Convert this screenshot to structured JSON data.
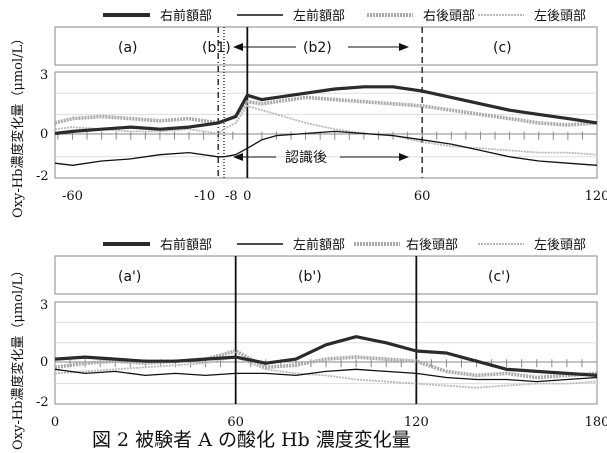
{
  "caption": "図 2 被験者 A の酸化 Hb 濃度変化量",
  "legend_labels": [
    "右前額部",
    "左前額部",
    "右後頭部",
    "左後頭部"
  ],
  "colors": {
    "right_frontal": "#2b2b2b",
    "left_frontal": "#111111",
    "right_occipital": "#a9a9a9",
    "left_occipital": "#b9b9b9"
  },
  "chart_data": [
    {
      "type": "line",
      "ylabel": "Oxy-Hb濃度変化量（μmol/L）",
      "ylim": [
        -2,
        3
      ],
      "yticks": [
        "3",
        "0",
        "-2"
      ],
      "xlim": [
        -66,
        120
      ],
      "xtick_values": [
        -60,
        -10,
        -8,
        0,
        60,
        120
      ],
      "xtick_labels": [
        "-60",
        "-10",
        "-8",
        "0",
        "60",
        "120"
      ],
      "phases": [
        "(a)",
        "(b1)",
        "(b2)",
        "(c)"
      ],
      "annotation": "認識後",
      "markers": [
        {
          "x": -10,
          "style": "dashdot"
        },
        {
          "x": -8,
          "style": "dot"
        },
        {
          "x": 0,
          "style": "solid"
        },
        {
          "x": 60,
          "style": "dashed"
        }
      ],
      "series": [
        {
          "name": "右前額部",
          "key": "right_frontal",
          "x": [
            -66,
            -60,
            -50,
            -40,
            -30,
            -20,
            -10,
            -8,
            -4,
            0,
            5,
            10,
            20,
            30,
            40,
            50,
            60,
            70,
            80,
            90,
            100,
            110,
            120
          ],
          "y": [
            0.1,
            0.2,
            0.3,
            0.4,
            0.3,
            0.4,
            0.6,
            0.7,
            0.9,
            1.9,
            1.7,
            1.8,
            2.0,
            2.2,
            2.3,
            2.3,
            2.1,
            1.8,
            1.5,
            1.2,
            1.0,
            0.8,
            0.6
          ]
        },
        {
          "name": "左前額部",
          "key": "left_frontal",
          "x": [
            -66,
            -60,
            -50,
            -40,
            -30,
            -20,
            -10,
            -8,
            -4,
            0,
            5,
            10,
            20,
            30,
            40,
            50,
            60,
            70,
            80,
            90,
            100,
            110,
            120
          ],
          "y": [
            -1.3,
            -1.4,
            -1.2,
            -1.1,
            -0.9,
            -0.8,
            -1.0,
            -1.0,
            -0.9,
            -0.6,
            -0.2,
            0.0,
            0.1,
            0.2,
            0.1,
            0.0,
            -0.2,
            -0.4,
            -0.7,
            -1.0,
            -1.2,
            -1.3,
            -1.4
          ]
        },
        {
          "name": "右後頭部",
          "key": "right_occipital",
          "x": [
            -66,
            -60,
            -50,
            -40,
            -30,
            -20,
            -10,
            -8,
            -4,
            0,
            5,
            10,
            20,
            30,
            40,
            50,
            60,
            70,
            80,
            90,
            100,
            110,
            120
          ],
          "y": [
            0.6,
            0.8,
            0.9,
            0.8,
            0.7,
            0.8,
            0.6,
            0.7,
            0.9,
            1.6,
            1.5,
            1.6,
            1.8,
            1.7,
            1.6,
            1.5,
            1.4,
            1.2,
            1.0,
            0.8,
            0.6,
            0.5,
            0.6
          ]
        },
        {
          "name": "左後頭部",
          "key": "left_occipital",
          "x": [
            -66,
            -60,
            -50,
            -40,
            -30,
            -20,
            -10,
            -8,
            -4,
            0,
            5,
            10,
            20,
            30,
            40,
            50,
            60,
            70,
            80,
            90,
            100,
            110,
            120
          ],
          "y": [
            0.3,
            0.4,
            0.3,
            0.2,
            0.2,
            0.3,
            0.1,
            0.3,
            0.6,
            1.4,
            1.2,
            1.0,
            0.6,
            0.3,
            0.1,
            0.0,
            -0.3,
            -0.5,
            -0.6,
            -0.7,
            -0.8,
            -0.8,
            -0.9
          ]
        }
      ]
    },
    {
      "type": "line",
      "ylabel": "Oxy-Hb濃度変化量（μmol/L）",
      "ylim": [
        -2,
        3
      ],
      "yticks": [
        "3",
        "0",
        "-2"
      ],
      "xlim": [
        0,
        180
      ],
      "xtick_values": [
        0,
        60,
        120,
        180
      ],
      "xtick_labels": [
        "0",
        "60",
        "120",
        "180"
      ],
      "phases": [
        "(a')",
        "(b')",
        "(c')"
      ],
      "markers": [
        {
          "x": 60,
          "style": "solid"
        },
        {
          "x": 120,
          "style": "solid"
        }
      ],
      "series": [
        {
          "name": "右前額部",
          "key": "right_frontal",
          "x": [
            0,
            10,
            20,
            30,
            40,
            50,
            60,
            70,
            80,
            90,
            100,
            110,
            120,
            130,
            140,
            150,
            160,
            170,
            180
          ],
          "y": [
            0.2,
            0.3,
            0.2,
            0.1,
            0.1,
            0.2,
            0.3,
            0.0,
            0.2,
            0.9,
            1.3,
            1.0,
            0.6,
            0.5,
            0.1,
            -0.3,
            -0.4,
            -0.5,
            -0.6
          ]
        },
        {
          "name": "左前額部",
          "key": "left_frontal",
          "x": [
            0,
            10,
            20,
            30,
            40,
            50,
            60,
            70,
            80,
            90,
            100,
            110,
            120,
            130,
            140,
            150,
            160,
            170,
            180
          ],
          "y": [
            -0.3,
            -0.5,
            -0.4,
            -0.6,
            -0.5,
            -0.6,
            -0.5,
            -0.5,
            -0.6,
            -0.4,
            -0.3,
            -0.4,
            -0.5,
            -0.7,
            -0.8,
            -0.8,
            -0.9,
            -0.8,
            -0.7
          ]
        },
        {
          "name": "右後頭部",
          "key": "right_occipital",
          "x": [
            0,
            10,
            20,
            30,
            40,
            50,
            60,
            70,
            80,
            90,
            100,
            110,
            120,
            130,
            140,
            150,
            160,
            170,
            180
          ],
          "y": [
            -0.2,
            0.0,
            0.1,
            0.0,
            0.1,
            0.2,
            0.6,
            -0.2,
            -0.1,
            0.2,
            0.3,
            0.2,
            0.1,
            -0.4,
            -0.6,
            -0.5,
            -0.7,
            -0.6,
            -0.5
          ]
        },
        {
          "name": "左後頭部",
          "key": "left_occipital",
          "x": [
            0,
            10,
            20,
            30,
            40,
            50,
            60,
            70,
            80,
            90,
            100,
            110,
            120,
            130,
            140,
            150,
            160,
            170,
            180
          ],
          "y": [
            -0.5,
            -0.4,
            -0.3,
            -0.2,
            -0.1,
            0.0,
            0.3,
            -0.3,
            -0.5,
            -0.6,
            -0.8,
            -0.9,
            -1.0,
            -1.1,
            -1.2,
            -1.1,
            -1.0,
            -1.0,
            -0.9
          ]
        }
      ]
    }
  ]
}
